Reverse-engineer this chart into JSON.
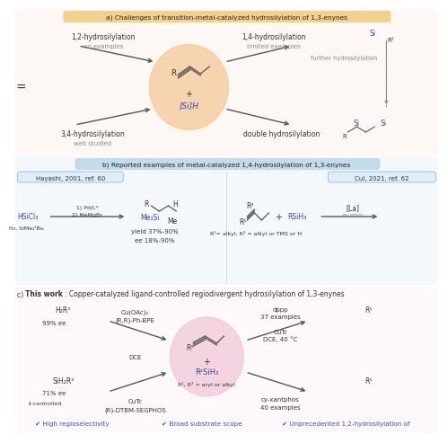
{
  "bg_color": "#ffffff",
  "title_a": "a) Challenges of transition-metal-catalyzed hydrosilylation of 1,3-enynes",
  "title_b": "b) Reported examples of metal-catalyzed 1,4-hydrosilylation of 1,3-enynes",
  "title_c_bold": "c) This work",
  "title_c_rest": ": Copper-catalyzed ligand-controlled regiodivergent hydrosilylation of 1,3-enynes",
  "sec_a_bg": "#fdf6ee",
  "sec_b_bg": "#eef4f9",
  "sec_c_bg": "#fdf4f7",
  "title_a_box": "#f2c97a",
  "title_b_box": "#b8d4e8",
  "circle_a_color": "#f5c89a",
  "circle_c_color": "#f0c8d8",
  "blue": "#3344aa",
  "dark_blue": "#2233aa",
  "gray": "#888888",
  "dark": "#333333",
  "red": "#cc2222",
  "check_blue": "#3355bb",
  "arrow_col": "#555555",
  "label_12": "1,2-hydrosilylation",
  "label_12sub": "no examples",
  "label_34": "3,4-hydrosilylation",
  "label_34sub": "well studied",
  "label_14": "1,4-hydrosilylation",
  "label_14sub": "limited examples",
  "label_dbl": "double hydrosilylation",
  "label_further": "further hydrosilylation",
  "hayashi_box": "Hayashi, 2001, ref. 60",
  "hayashi_ref_style": "italic",
  "cui_box": "Cui, 2021, ref. 62",
  "hsi": "HSiCl₃",
  "h2si": "H₂, SiMe₂ᵗBu",
  "pd_steps": "1) Pd/L*",
  "mgbr": "2) MeMgBr",
  "yield_text": "yield 37%-90%",
  "ee_text": "ee 18%-90%",
  "me3si": "Me₃Si",
  "r1alkyl": "R¹= alkyl, R² = alkyl or TMS or H",
  "rsiH3": "RSiH₃",
  "La_cat": "[La]",
  "racemic": "racemic",
  "cu_oac": "Cu(OAc)₂",
  "rr_bpe": "(R,R)-Ph-BPE",
  "cutc": "CuTc",
  "dce": "DCE",
  "rdtbm": "(R)-DTBM-SEGPHOS",
  "dppp": "dppp",
  "n37": "37 examples",
  "cutc2": "CuTc",
  "dce40": "DCE, 40 °C",
  "cyxan": "cy-xantphos",
  "n40": "40 examples",
  "ee99": "99% ee",
  "ee71": "71% ee",
  "ctrl": "ii-controlled",
  "r1r2aryl": "R¹, R² = aryl or alkyl",
  "chk1": "✔ High regioselectivity",
  "chk2": "✔ Broad substrate scope",
  "chk3": "✔ Unprecedented 1,2-hydrosilylation of"
}
